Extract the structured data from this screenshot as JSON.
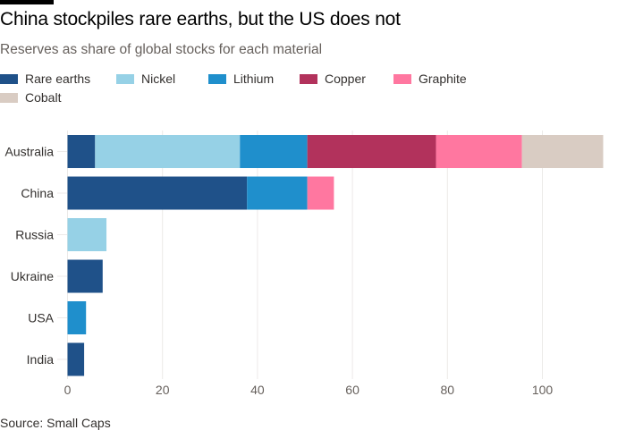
{
  "header": {
    "title": "China stockpiles rare earths, but the US does not",
    "subtitle": "Reserves as share of global stocks for each material",
    "source": "Source: Small Caps"
  },
  "chart_data": {
    "type": "bar",
    "orientation": "horizontal",
    "stacked": true,
    "title": "China stockpiles rare earths, but the US does not",
    "subtitle": "Reserves as share of global stocks for each material",
    "xlabel": "",
    "ylabel": "",
    "xlim": [
      0,
      115
    ],
    "xticks": [
      0,
      20,
      40,
      60,
      80,
      100
    ],
    "grid": true,
    "legend_position": "top-left",
    "categories": [
      "Australia",
      "China",
      "Russia",
      "Ukraine",
      "USA",
      "India"
    ],
    "series": [
      {
        "name": "Rare earths",
        "color": "#1f5189",
        "values": [
          5.8,
          37.8,
          0,
          7.4,
          0,
          3.5
        ]
      },
      {
        "name": "Nickel",
        "color": "#96d1e6",
        "values": [
          30.5,
          0,
          8.2,
          0,
          0,
          0
        ]
      },
      {
        "name": "Lithium",
        "color": "#1f8fcc",
        "values": [
          14.2,
          12.7,
          0,
          0,
          3.9,
          0
        ]
      },
      {
        "name": "Copper",
        "color": "#b2325c",
        "values": [
          27.1,
          0,
          0,
          0,
          0,
          0
        ]
      },
      {
        "name": "Graphite",
        "color": "#ff77a0",
        "values": [
          18.1,
          5.6,
          0,
          0,
          0,
          0
        ]
      },
      {
        "name": "Cobalt",
        "color": "#d9ccc3",
        "values": [
          17.1,
          0,
          0,
          0,
          0,
          0
        ]
      }
    ],
    "source": "Source: Small Caps"
  }
}
